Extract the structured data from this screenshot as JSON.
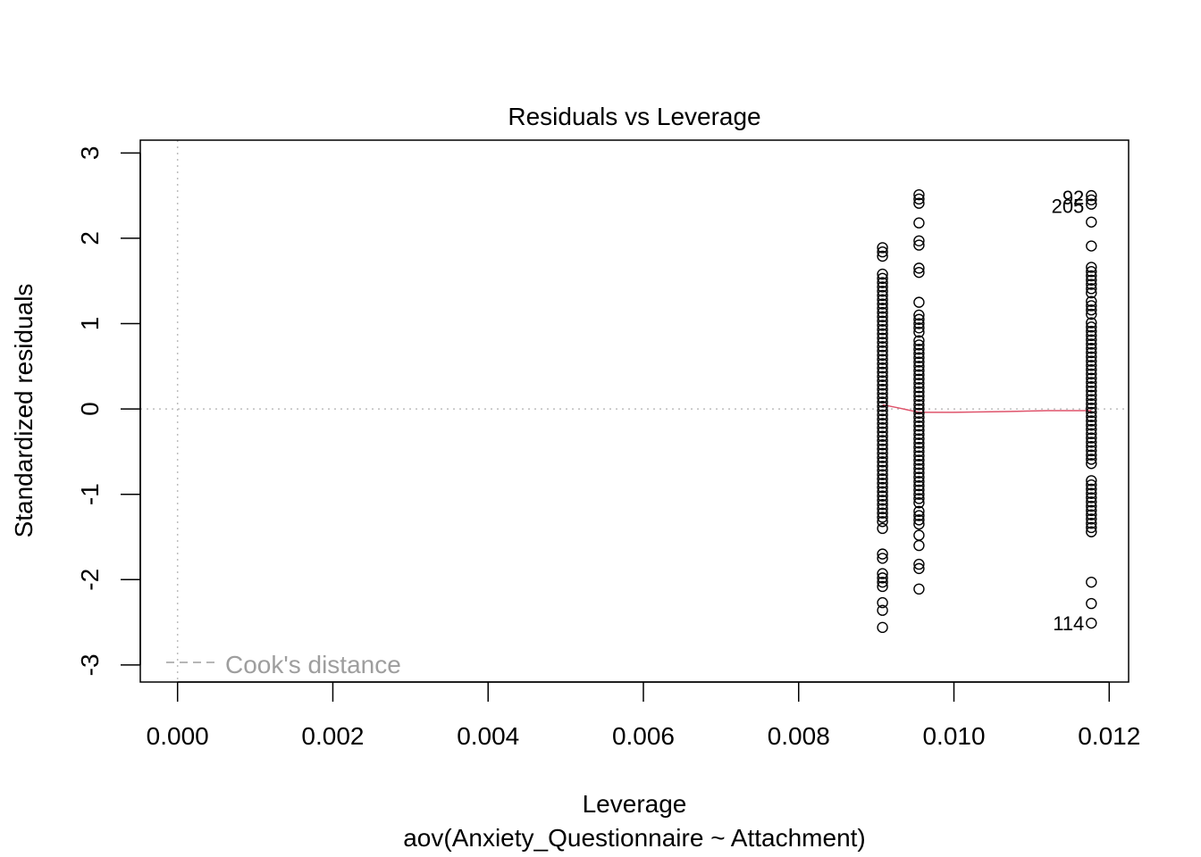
{
  "chart_data": {
    "type": "scatter",
    "title": "Residuals vs Leverage",
    "xlabel": "Leverage",
    "ylabel": "Standardized residuals",
    "subtitle": "aov(Anxiety_Questionnaire ~ Attachment)",
    "xlim": [
      -0.00048,
      0.01225
    ],
    "ylim": [
      -3.2,
      3.15
    ],
    "x_ticks": [
      "0.000",
      "0.002",
      "0.004",
      "0.006",
      "0.008",
      "0.010",
      "0.012"
    ],
    "x_tick_values": [
      0,
      0.002,
      0.004,
      0.006,
      0.008,
      0.01,
      0.012
    ],
    "y_ticks": [
      "-3",
      "-2",
      "-1",
      "0",
      "1",
      "2",
      "3"
    ],
    "y_tick_values": [
      -3,
      -2,
      -1,
      0,
      1,
      2,
      3
    ],
    "grid": false,
    "reference_lines": {
      "x": 0,
      "y": 0,
      "color": "#bdbdbd",
      "style": "dotted"
    },
    "legend": {
      "entries": [
        "Cook's distance"
      ],
      "position": "bottom-left",
      "color": "#9e9e9e",
      "style": "dashed"
    },
    "series": [
      {
        "leverage": 0.00908,
        "color": "#000000",
        "residuals": [
          1.89,
          1.84,
          1.79,
          1.58,
          1.53,
          1.48,
          1.43,
          1.38,
          1.33,
          1.28,
          1.23,
          1.18,
          1.13,
          1.08,
          1.03,
          0.98,
          0.93,
          0.88,
          0.83,
          0.78,
          0.73,
          0.68,
          0.63,
          0.58,
          0.53,
          0.48,
          0.43,
          0.38,
          0.33,
          0.28,
          0.23,
          0.18,
          0.13,
          0.08,
          0.03,
          -0.02,
          -0.07,
          -0.12,
          -0.17,
          -0.22,
          -0.27,
          -0.32,
          -0.37,
          -0.42,
          -0.47,
          -0.52,
          -0.57,
          -0.62,
          -0.67,
          -0.72,
          -0.77,
          -0.82,
          -0.87,
          -0.92,
          -0.97,
          -1.02,
          -1.07,
          -1.12,
          -1.17,
          -1.22,
          -1.27,
          -1.32,
          -1.4,
          -1.7,
          -1.75,
          -1.93,
          -1.98,
          -2.03,
          -2.08,
          -2.27,
          -2.36,
          -2.56
        ]
      },
      {
        "leverage": 0.00955,
        "color": "#000000",
        "residuals": [
          2.51,
          2.46,
          2.41,
          2.18,
          1.97,
          1.92,
          1.65,
          1.6,
          1.25,
          1.1,
          1.05,
          1.0,
          0.95,
          0.9,
          0.8,
          0.75,
          0.7,
          0.65,
          0.6,
          0.55,
          0.5,
          0.45,
          0.4,
          0.35,
          0.3,
          0.25,
          0.2,
          0.15,
          0.1,
          0.05,
          0.0,
          -0.05,
          -0.1,
          -0.15,
          -0.2,
          -0.25,
          -0.3,
          -0.35,
          -0.4,
          -0.45,
          -0.5,
          -0.55,
          -0.6,
          -0.65,
          -0.7,
          -0.75,
          -0.8,
          -0.85,
          -0.9,
          -0.95,
          -1.0,
          -1.05,
          -1.1,
          -1.2,
          -1.25,
          -1.3,
          -1.35,
          -1.48,
          -1.6,
          -1.82,
          -1.87,
          -2.11
        ]
      },
      {
        "leverage": 0.01177,
        "color": "#000000",
        "residuals": [
          2.5,
          2.45,
          2.4,
          2.19,
          1.91,
          1.66,
          1.61,
          1.56,
          1.51,
          1.46,
          1.41,
          1.36,
          1.26,
          1.21,
          1.16,
          1.11,
          1.01,
          0.96,
          0.91,
          0.86,
          0.81,
          0.76,
          0.71,
          0.66,
          0.61,
          0.56,
          0.51,
          0.46,
          0.41,
          0.36,
          0.31,
          0.26,
          0.21,
          0.16,
          0.11,
          0.06,
          0.01,
          -0.04,
          -0.09,
          -0.14,
          -0.19,
          -0.24,
          -0.29,
          -0.34,
          -0.39,
          -0.44,
          -0.49,
          -0.54,
          -0.59,
          -0.64,
          -0.84,
          -0.89,
          -0.94,
          -0.99,
          -1.04,
          -1.09,
          -1.14,
          -1.19,
          -1.24,
          -1.29,
          -1.34,
          -1.39,
          -1.44,
          -2.03,
          -2.28,
          -2.51
        ]
      }
    ],
    "smooth_line": {
      "color": "#df536b",
      "points": [
        [
          0.00908,
          0.05
        ],
        [
          0.0093,
          0.01
        ],
        [
          0.00955,
          -0.04
        ],
        [
          0.01,
          -0.04
        ],
        [
          0.01066,
          -0.03
        ],
        [
          0.0112,
          -0.02
        ],
        [
          0.01177,
          -0.02
        ]
      ]
    },
    "point_labels": [
      {
        "text": "92",
        "x": 0.01177,
        "y": 2.48,
        "side": "left"
      },
      {
        "text": "205",
        "x": 0.01177,
        "y": 2.38,
        "side": "left"
      },
      {
        "text": "114",
        "x": 0.01177,
        "y": -2.51,
        "side": "left"
      }
    ]
  }
}
